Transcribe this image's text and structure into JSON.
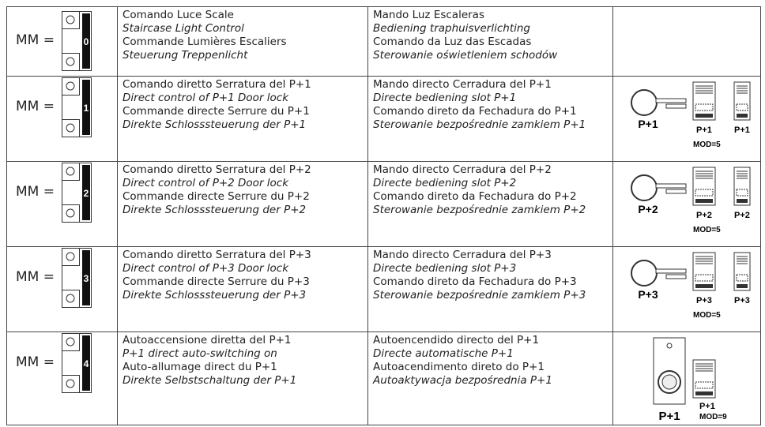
{
  "rows": [
    {
      "mm": "MM =",
      "digit": "0",
      "col1": [
        "Comando Luce Scale",
        "Staircase Light Control",
        "Commande Lumières Escaliers",
        "Steuerung Treppenlicht"
      ],
      "col2": [
        "Mando Luz Escaleras",
        "Bediening traphuisverlichting",
        "Comando da Luz das Escadas",
        "Sterowanie oświetleniem schodów"
      ]
    },
    {
      "mm": "MM =",
      "digit": "1",
      "col1": [
        "Comando diretto Serratura del P+1",
        "Direct control of P+1 Door lock",
        "Commande directe Serrure du P+1",
        "Direkte Schlosssteuerung der P+1"
      ],
      "col2": [
        "Mando directo Cerradura del P+1",
        "Directe bediening slot  P+1",
        "Comando direto da Fechadura do P+1",
        "Sterowanie bezpośrednie zamkiem P+1"
      ],
      "key_label": "P+1",
      "module_labels": [
        "P+1",
        "P+1"
      ],
      "mod": "MOD=5"
    },
    {
      "mm": "MM =",
      "digit": "2",
      "col1": [
        "Comando diretto Serratura del P+2",
        "Direct control of P+2 Door lock",
        "Commande directe Serrure du P+2",
        "Direkte Schlosssteuerung der P+2"
      ],
      "col2": [
        "Mando directo Cerradura del P+2",
        "Directe bediening slot P+2",
        "Comando direto da Fechadura do P+2",
        "Sterowanie bezpośrednie zamkiem P+2"
      ],
      "key_label": "P+2",
      "module_labels": [
        "P+2",
        "P+2"
      ],
      "mod": "MOD=5"
    },
    {
      "mm": "MM =",
      "digit": "3",
      "col1": [
        "Comando diretto Serratura  del P+3",
        "Direct control of P+3 Door lock",
        "Commande directe Serrure du P+3",
        "Direkte Schlosssteuerung der P+3"
      ],
      "col2": [
        "Mando directo Cerradura del P+3",
        "Directe bediening slot P+3",
        "Comando direto da Fechadura do P+3",
        "Sterowanie bezpośrednie zamkiem P+3"
      ],
      "key_label": "P+3",
      "module_labels": [
        "P+3",
        "P+3"
      ],
      "mod": "MOD=5"
    },
    {
      "mm": "MM =",
      "digit": "4",
      "col1": [
        "Autoaccensione diretta del P+1",
        "P+1 direct auto-switching on",
        "Auto-allumage direct du P+1",
        "Direkte Selbstschaltung der P+1"
      ],
      "col2": [
        "Autoencendido directo del P+1",
        "Directe automatische P+1",
        "Autoacendimento direto do P+1",
        "Autoaktywacja bezpośrednia P+1"
      ],
      "panel_label": "P+1",
      "module_labels": [
        "P+1"
      ],
      "mod": "MOD=9"
    }
  ]
}
